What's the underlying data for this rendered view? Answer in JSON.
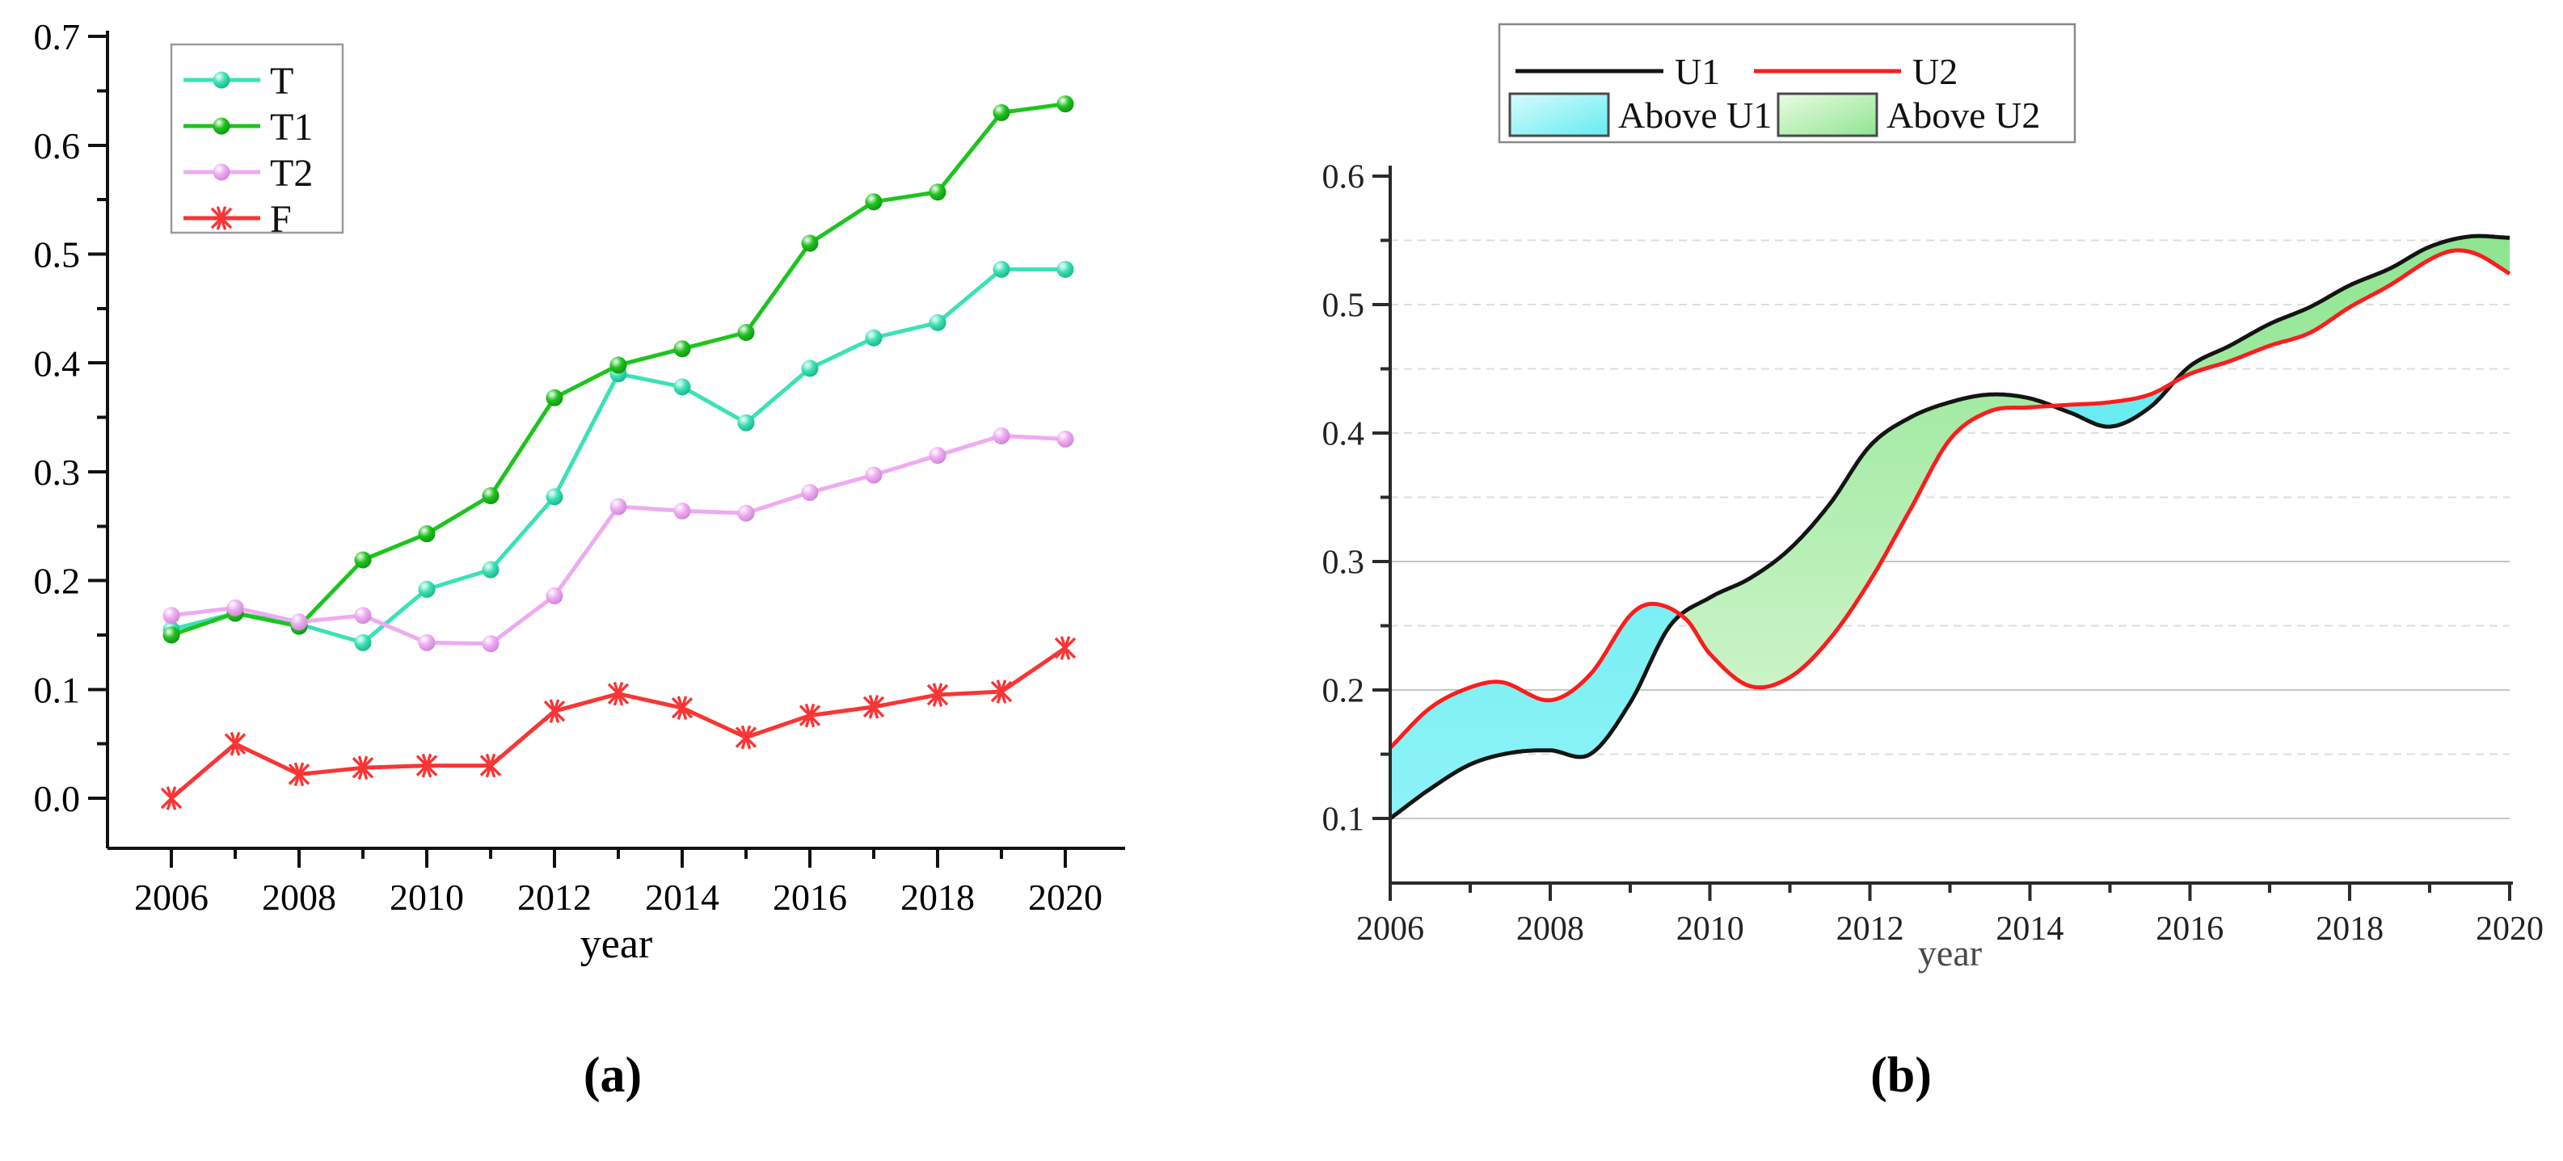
{
  "figure": {
    "panel_a_label": "(a)",
    "panel_b_label": "(b)"
  },
  "chart_data": [
    {
      "type": "line",
      "panel": "a",
      "title": "",
      "xlabel": "year",
      "ylabel": "",
      "x": [
        2006,
        2007,
        2008,
        2009,
        2010,
        2011,
        2012,
        2013,
        2014,
        2015,
        2016,
        2017,
        2018,
        2019,
        2020
      ],
      "x_tick_labels": [
        "2006",
        "2008",
        "2010",
        "2012",
        "2014",
        "2016",
        "2018",
        "2020"
      ],
      "ylim": [
        0.0,
        0.7
      ],
      "yticks": [
        0.0,
        0.1,
        0.2,
        0.3,
        0.4,
        0.5,
        0.6,
        0.7
      ],
      "grid": false,
      "legend_position": "top-left",
      "series": [
        {
          "name": "T",
          "color": "#3be2b6",
          "dark": "#13ad85",
          "marker": "sphere",
          "values": [
            0.155,
            0.17,
            0.16,
            0.143,
            0.192,
            0.21,
            0.277,
            0.39,
            0.378,
            0.345,
            0.395,
            0.423,
            0.437,
            0.486,
            0.486
          ]
        },
        {
          "name": "T1",
          "color": "#1ec41e",
          "dark": "#0d8c10",
          "marker": "sphere",
          "values": [
            0.15,
            0.17,
            0.158,
            0.219,
            0.243,
            0.278,
            0.368,
            0.398,
            0.413,
            0.428,
            0.51,
            0.548,
            0.557,
            0.63,
            0.638
          ]
        },
        {
          "name": "T2",
          "color": "#eeabf1",
          "dark": "#c97fd2",
          "marker": "sphere",
          "values": [
            0.168,
            0.175,
            0.162,
            0.168,
            0.143,
            0.142,
            0.186,
            0.268,
            0.264,
            0.262,
            0.281,
            0.297,
            0.315,
            0.333,
            0.33
          ]
        },
        {
          "name": "F",
          "color": "#f93535",
          "dark": "#c40f0f",
          "marker": "star",
          "values": [
            0.0,
            0.05,
            0.022,
            0.028,
            0.03,
            0.03,
            0.08,
            0.096,
            0.083,
            0.056,
            0.076,
            0.084,
            0.095,
            0.098,
            0.138
          ]
        }
      ]
    },
    {
      "type": "area",
      "panel": "b",
      "title": "",
      "xlabel": "year",
      "ylabel": "",
      "x_tick_labels": [
        "2006",
        "2008",
        "2010",
        "2012",
        "2014",
        "2016",
        "2018",
        "2020"
      ],
      "xlim": [
        2006,
        2020
      ],
      "ylim": [
        0.1,
        0.6
      ],
      "yticks": [
        0.1,
        0.2,
        0.3,
        0.4,
        0.5,
        0.6
      ],
      "grid": true,
      "legend_position": "top",
      "series": [
        {
          "name": "U1",
          "color": "#141414",
          "points": [
            [
              2006,
              0.1
            ],
            [
              2006.5,
              0.123
            ],
            [
              2007,
              0.142
            ],
            [
              2007.5,
              0.151
            ],
            [
              2008,
              0.153
            ],
            [
              2008.5,
              0.15
            ],
            [
              2009,
              0.19
            ],
            [
              2009.5,
              0.25
            ],
            [
              2010,
              0.272
            ],
            [
              2010.5,
              0.287
            ],
            [
              2011,
              0.31
            ],
            [
              2011.5,
              0.345
            ],
            [
              2012,
              0.39
            ],
            [
              2012.5,
              0.412
            ],
            [
              2013,
              0.424
            ],
            [
              2013.5,
              0.43
            ],
            [
              2014,
              0.427
            ],
            [
              2014.5,
              0.416
            ],
            [
              2015,
              0.405
            ],
            [
              2015.5,
              0.42
            ],
            [
              2016,
              0.452
            ],
            [
              2016.5,
              0.468
            ],
            [
              2017,
              0.485
            ],
            [
              2017.5,
              0.498
            ],
            [
              2018,
              0.515
            ],
            [
              2018.5,
              0.528
            ],
            [
              2019,
              0.545
            ],
            [
              2019.5,
              0.553
            ],
            [
              2020,
              0.552
            ]
          ]
        },
        {
          "name": "U2",
          "color": "#fb1d1d",
          "points": [
            [
              2006,
              0.155
            ],
            [
              2006.5,
              0.186
            ],
            [
              2007,
              0.202
            ],
            [
              2007.4,
              0.206
            ],
            [
              2008,
              0.192
            ],
            [
              2008.5,
              0.212
            ],
            [
              2009,
              0.258
            ],
            [
              2009.3,
              0.267
            ],
            [
              2009.7,
              0.255
            ],
            [
              2010,
              0.228
            ],
            [
              2010.5,
              0.203
            ],
            [
              2011,
              0.21
            ],
            [
              2011.5,
              0.24
            ],
            [
              2012,
              0.285
            ],
            [
              2012.5,
              0.34
            ],
            [
              2013,
              0.395
            ],
            [
              2013.5,
              0.417
            ],
            [
              2014,
              0.42
            ],
            [
              2014.5,
              0.422
            ],
            [
              2015,
              0.424
            ],
            [
              2015.5,
              0.43
            ],
            [
              2016,
              0.446
            ],
            [
              2016.5,
              0.456
            ],
            [
              2017,
              0.468
            ],
            [
              2017.5,
              0.478
            ],
            [
              2018,
              0.498
            ],
            [
              2018.5,
              0.515
            ],
            [
              2019,
              0.535
            ],
            [
              2019.3,
              0.542
            ],
            [
              2019.6,
              0.539
            ],
            [
              2020,
              0.524
            ]
          ]
        }
      ],
      "fills": [
        {
          "name": "Above U1",
          "condition": "U2_above_U1",
          "color_top": "#55e8ee",
          "color_bottom": "#8df3f6"
        },
        {
          "name": "Above U2",
          "condition": "U1_above_U2",
          "color_top": "#85e389",
          "color_bottom": "#ddf8d7"
        }
      ]
    }
  ]
}
